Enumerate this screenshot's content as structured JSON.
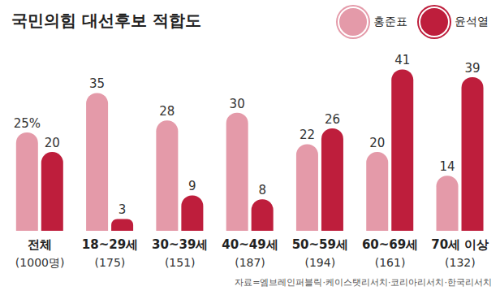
{
  "chart_data": {
    "type": "bar",
    "title": "국민의힘 대선후보 적합도",
    "source": "자료=엠브레인퍼블릭·케이스탯리서치·코리아리서치·한국리서치",
    "categories": [
      "전체 (1000명)",
      "18~29세 (175)",
      "30~39세 (151)",
      "40~49세 (187)",
      "50~59세 (194)",
      "60~69세 (161)",
      "70세 이상 (132)"
    ],
    "series": [
      {
        "name": "홍준표",
        "color": "#e49aa9",
        "values": [
          25,
          35,
          28,
          30,
          22,
          20,
          14
        ],
        "value_labels": [
          "25%",
          "35",
          "28",
          "30",
          "22",
          "20",
          "14"
        ]
      },
      {
        "name": "윤석열",
        "color": "#be1e3c",
        "values": [
          20,
          3,
          9,
          8,
          26,
          41,
          39
        ]
      }
    ],
    "ylim": [
      0,
      45
    ],
    "data_labels": true,
    "tick_labels": "x",
    "legend": "top-right",
    "grid": false
  }
}
